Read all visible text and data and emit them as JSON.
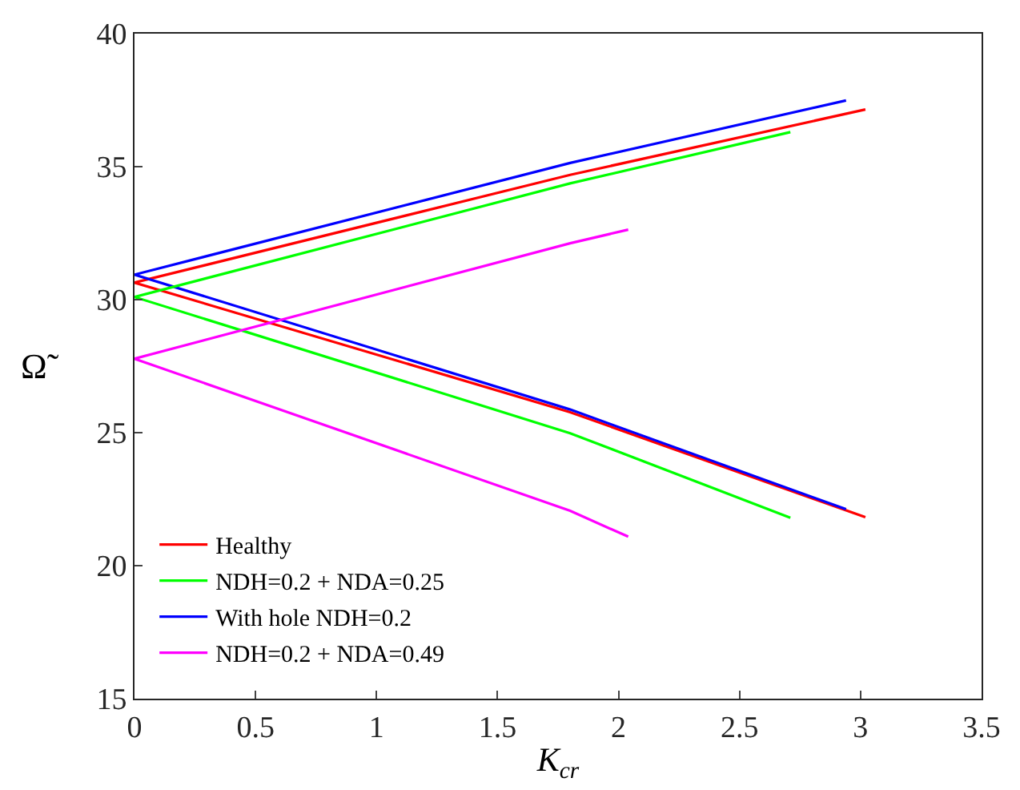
{
  "chart_data": {
    "type": "line",
    "xlabel": "K$_{cr}$",
    "ylabel": "Ω̃",
    "xlim": [
      0,
      3.5
    ],
    "xticks": [
      0,
      0.5,
      1,
      1.5,
      2,
      2.5,
      3,
      3.5
    ],
    "ylim": [
      15,
      40
    ],
    "yticks": [
      15,
      20,
      25,
      30,
      35,
      40
    ],
    "legend": "bottom",
    "marker": "none",
    "line_style": "solid",
    "series": [
      {
        "name": "Healthy",
        "color": "#ff0000",
        "x": [
          3.02,
          1.8,
          0,
          1.8,
          3.02
        ],
        "values": [
          37.15,
          34.69,
          30.64,
          25.77,
          21.82
        ]
      },
      {
        "name": "With hole NDH=0.2",
        "color": "#0000ff",
        "x": [
          2.94,
          1.8,
          0,
          1.8,
          2.94
        ],
        "values": [
          37.49,
          35.14,
          30.94,
          25.87,
          22.12
        ]
      },
      {
        "name": "NDH=0.2 + NDA=0.25",
        "color": "#00ff00",
        "x": [
          2.71,
          1.8,
          0,
          1.8,
          2.71
        ],
        "values": [
          36.3,
          34.37,
          30.1,
          24.98,
          21.8
        ]
      },
      {
        "name": "NDH=0.2 + NDA=0.49",
        "color": "#ff00ff",
        "x": [
          2.04,
          1.8,
          0,
          1.8,
          2.04
        ],
        "values": [
          32.63,
          32.12,
          27.78,
          22.06,
          21.09
        ]
      }
    ]
  }
}
